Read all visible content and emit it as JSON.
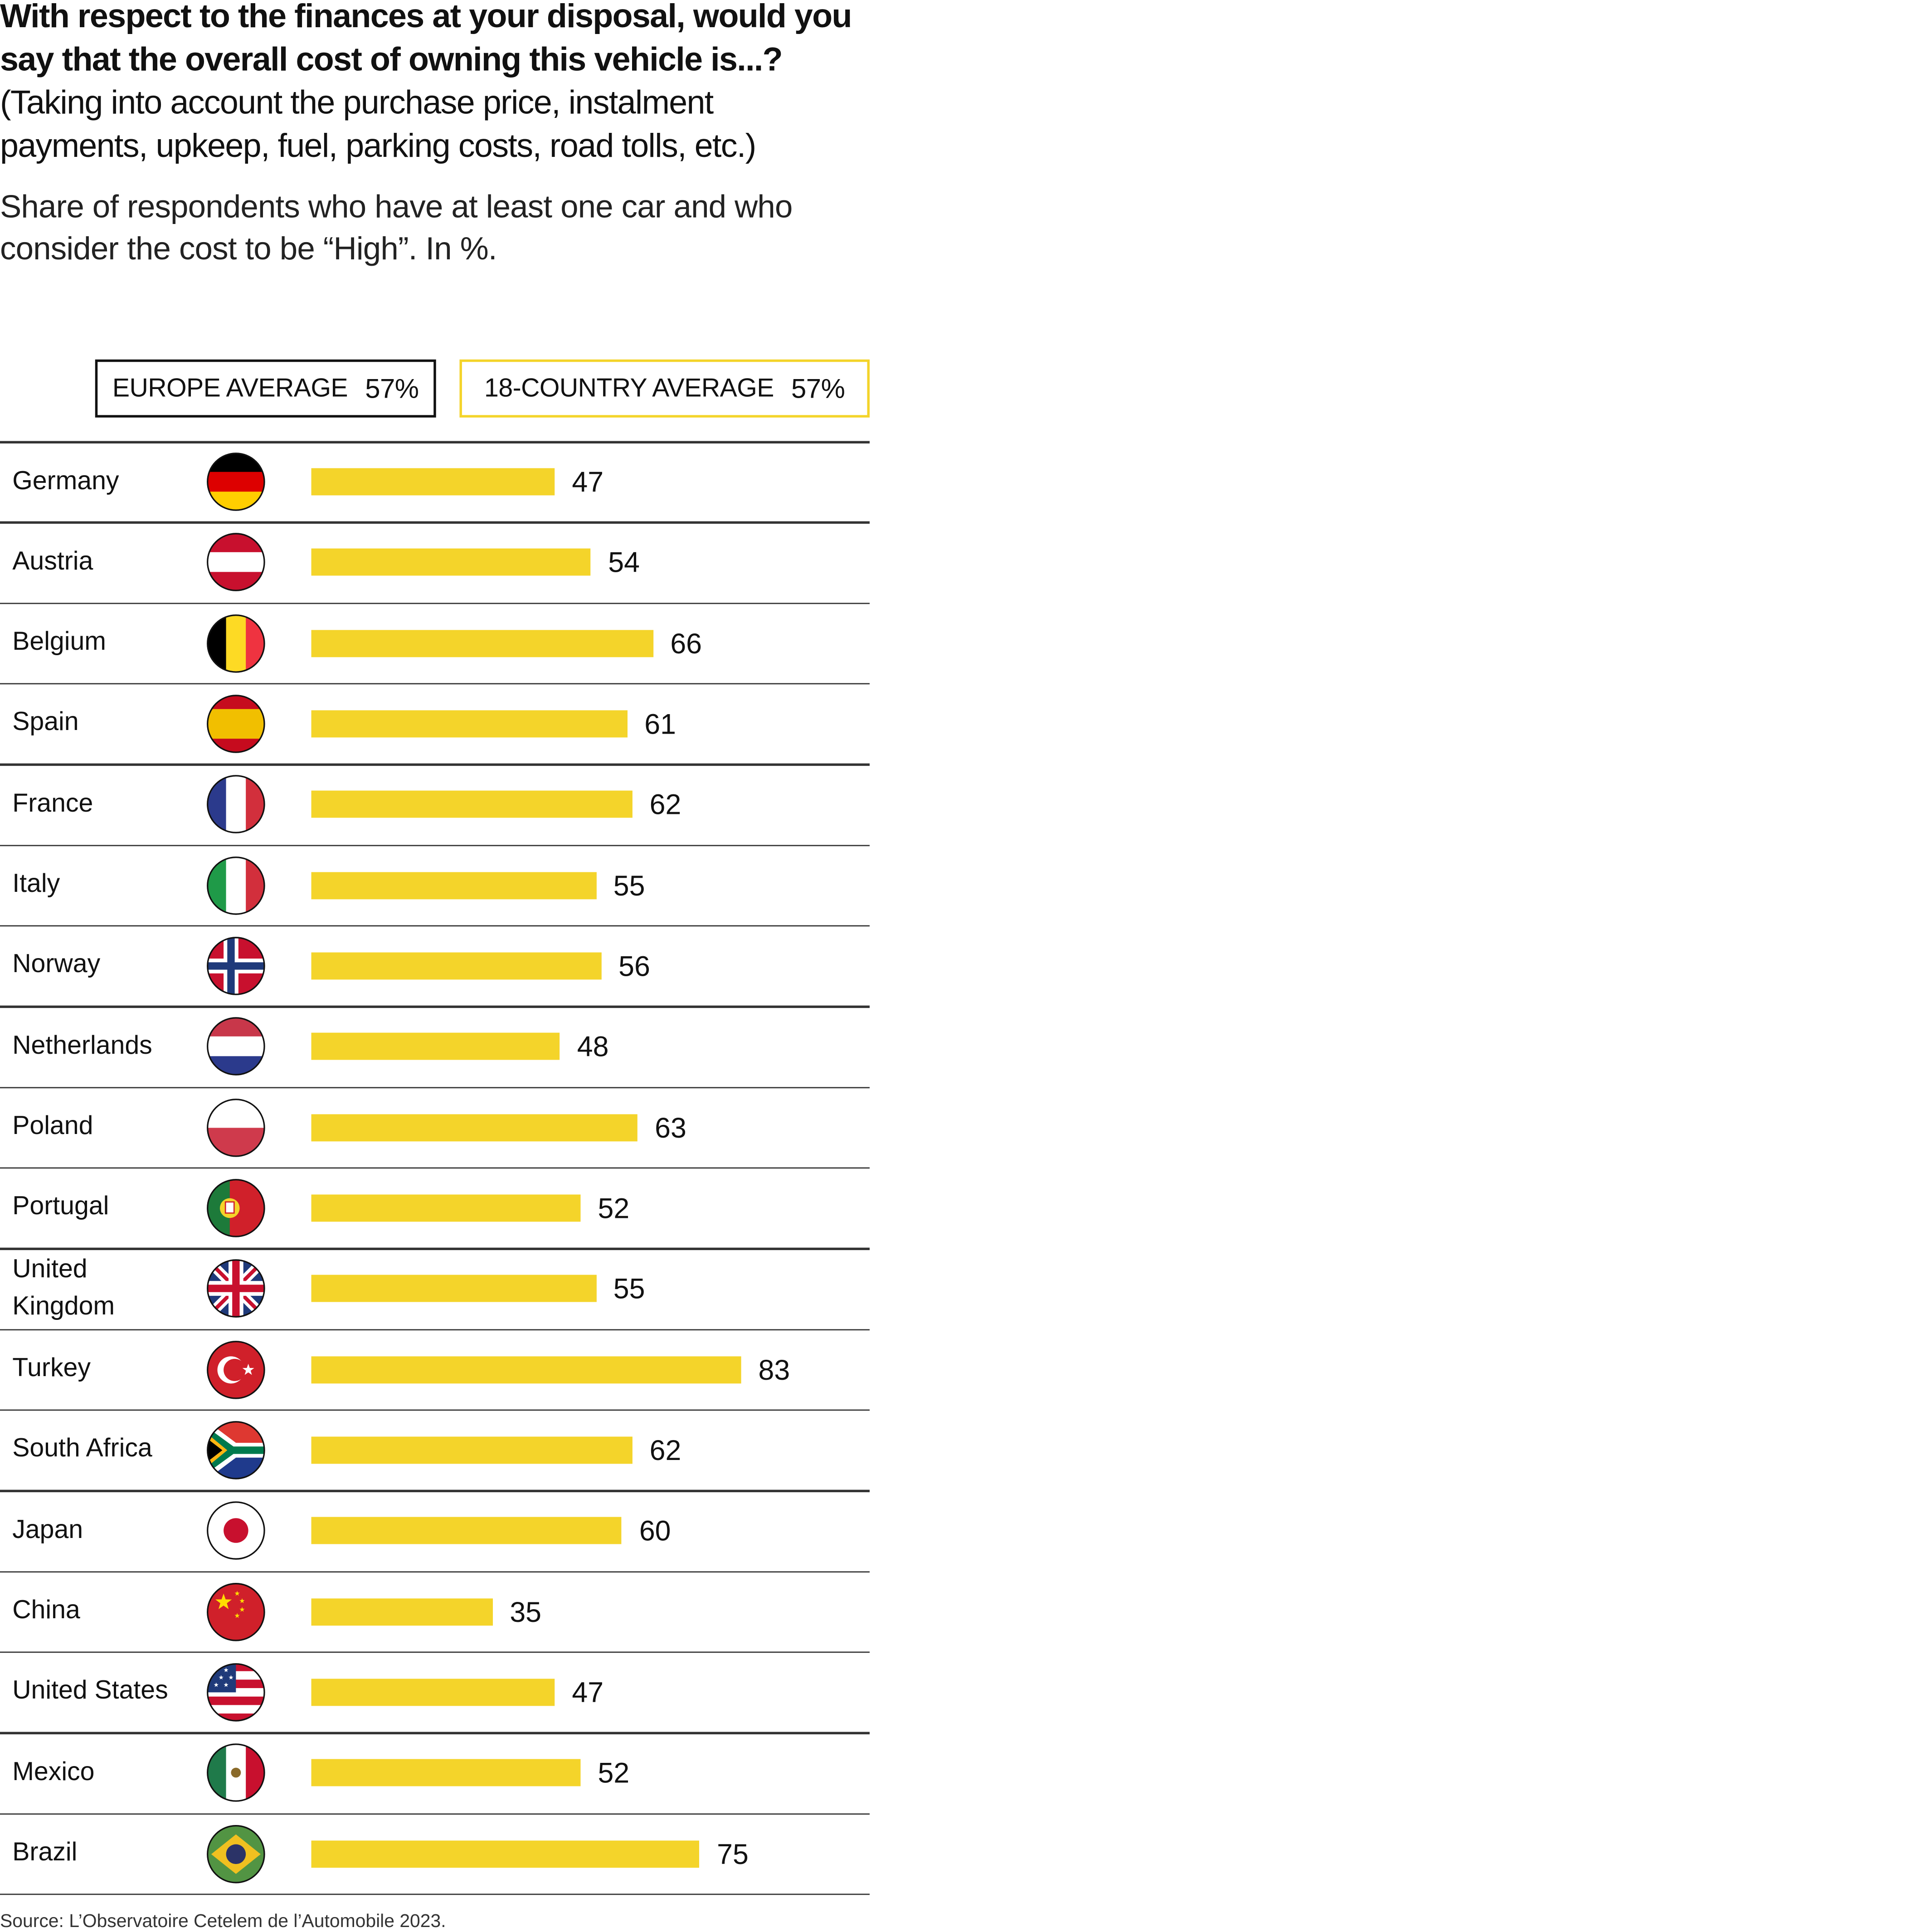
{
  "title": {
    "bold": "With respect to the finances at your disposal, would you say that the overall cost of owning this vehicle is...?",
    "question_note": "(Taking into account the purchase price, instalment payments, upkeep, fuel, parking costs, road tolls, etc.)",
    "subtitle": "Share of respondents who have at least one car and who consider the cost to be “High”. In %."
  },
  "legend": {
    "europe_label": "EUROPE AVERAGE",
    "europe_value": "57%",
    "all_label": "18-COUNTRY AVERAGE",
    "all_value": "57%"
  },
  "colors": {
    "bar": "#f4d42a",
    "text": "#111111",
    "rule": "#333333"
  },
  "chart_data": {
    "type": "bar",
    "orientation": "horizontal",
    "title": "With respect to the finances at your disposal, would you say that the overall cost of owning this vehicle is...?",
    "ylabel": "",
    "xlabel": "",
    "xlim": [
      0,
      100
    ],
    "grid": false,
    "unit": "%",
    "categories": [
      "Germany",
      "Austria",
      "Belgium",
      "Spain",
      "France",
      "Italy",
      "Norway",
      "Netherlands",
      "Poland",
      "Portugal",
      "United Kingdom",
      "Turkey",
      "South Africa",
      "Japan",
      "China",
      "United States",
      "Mexico",
      "Brazil"
    ],
    "flags": [
      "de",
      "at",
      "be",
      "es",
      "fr",
      "it",
      "no",
      "nl",
      "pl",
      "pt",
      "gb",
      "tr",
      "za",
      "jp",
      "cn",
      "us",
      "mx",
      "br"
    ],
    "values": [
      47,
      54,
      66,
      61,
      62,
      55,
      56,
      48,
      63,
      52,
      55,
      83,
      62,
      60,
      35,
      47,
      52,
      75
    ]
  },
  "source": "Source: L’Observatoire Cetelem de l’Automobile 2023."
}
